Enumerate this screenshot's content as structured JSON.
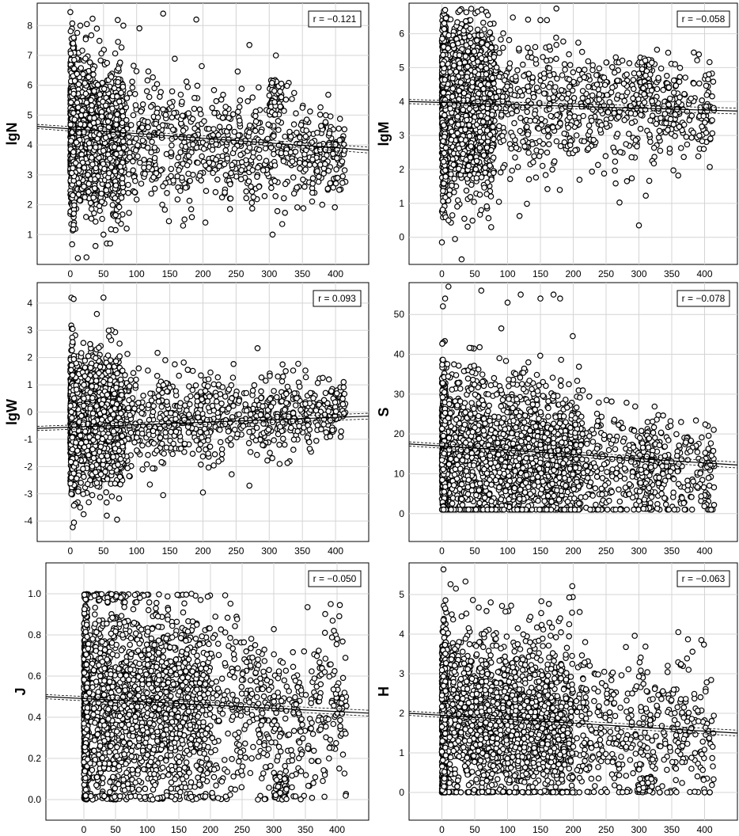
{
  "chart_data": [
    {
      "type": "scatter",
      "ylabel": "lgN",
      "annotation": "r = −0.121",
      "xlim": [
        -50,
        450
      ],
      "ylim": [
        0,
        8.75
      ],
      "xticks": [
        0,
        50,
        100,
        150,
        200,
        250,
        300,
        350,
        400
      ],
      "yticks": [
        1,
        2,
        3,
        4,
        5,
        6,
        7,
        8
      ],
      "fit": {
        "x": [
          -50,
          450
        ],
        "y": [
          4.62,
          3.83
        ]
      },
      "points_summary": {
        "mean": 4.3,
        "spread_near_zero": 1.25,
        "spread_far": 0.75,
        "dense_x_max": 80
      },
      "outliers": [
        [
          0,
          8.45
        ],
        [
          5,
          7.6
        ],
        [
          15,
          8.0
        ],
        [
          25,
          8.05
        ],
        [
          40,
          7.9
        ],
        [
          50,
          1.0
        ],
        [
          55,
          0.7
        ],
        [
          60,
          0.7
        ],
        [
          80,
          8.0
        ],
        [
          85,
          1.2
        ],
        [
          140,
          8.4
        ],
        [
          190,
          8.2
        ],
        [
          270,
          7.35
        ],
        [
          305,
          1.0
        ],
        [
          310,
          7.0
        ],
        [
          365,
          2.4
        ],
        [
          380,
          2.0
        ]
      ],
      "cluster": {
        "x": [
          300,
          320
        ],
        "y": [
          5.0,
          6.2
        ]
      }
    },
    {
      "type": "scatter",
      "ylabel": "lgM",
      "annotation": "r = −0.058",
      "xlim": [
        -50,
        450
      ],
      "ylim": [
        -0.8,
        6.9
      ],
      "xticks": [
        0,
        50,
        100,
        150,
        200,
        250,
        300,
        350,
        400
      ],
      "yticks": [
        0,
        1,
        2,
        3,
        4,
        5,
        6
      ],
      "fit": {
        "x": [
          -50,
          450
        ],
        "y": [
          4.0,
          3.72
        ]
      },
      "points_summary": {
        "mean": 3.9,
        "spread_near_zero": 1.3,
        "spread_far": 0.7,
        "dense_x_max": 80
      },
      "outliers": [
        [
          0,
          -0.15
        ],
        [
          5,
          6.7
        ],
        [
          10,
          0.5
        ],
        [
          20,
          -0.05
        ],
        [
          30,
          -0.65
        ],
        [
          60,
          0.8
        ],
        [
          75,
          0.3
        ],
        [
          150,
          6.4
        ],
        [
          160,
          6.4
        ],
        [
          300,
          0.35
        ],
        [
          355,
          5.1
        ]
      ],
      "cluster": {
        "x": [
          300,
          320
        ],
        "y": [
          4.2,
          5.3
        ]
      }
    },
    {
      "type": "scatter",
      "ylabel": "lgW",
      "annotation": "r = 0.093",
      "xlim": [
        -50,
        450
      ],
      "ylim": [
        -4.75,
        4.75
      ],
      "xticks": [
        0,
        50,
        100,
        150,
        200,
        250,
        300,
        350,
        400
      ],
      "yticks": [
        -4,
        -3,
        -2,
        -1,
        0,
        1,
        2,
        3,
        4
      ],
      "fit": {
        "x": [
          -50,
          450
        ],
        "y": [
          -0.6,
          -0.15
        ]
      },
      "points_summary": {
        "mean": -0.35,
        "spread_near_zero": 1.2,
        "spread_far": 0.55,
        "dense_x_max": 80
      },
      "outliers": [
        [
          5,
          4.15
        ],
        [
          20,
          -3.75
        ],
        [
          40,
          3.6
        ],
        [
          50,
          4.2
        ],
        [
          55,
          -3.8
        ],
        [
          140,
          -3.05
        ],
        [
          200,
          -2.95
        ],
        [
          270,
          -2.7
        ],
        [
          320,
          1.75
        ],
        [
          390,
          1.2
        ]
      ],
      "cluster": null
    },
    {
      "type": "scatter",
      "ylabel": "S",
      "annotation": "r = −0.078",
      "xlim": [
        -50,
        450
      ],
      "ylim": [
        -7,
        58
      ],
      "xticks": [
        0,
        50,
        100,
        150,
        200,
        250,
        300,
        350,
        400
      ],
      "yticks": [
        0,
        10,
        20,
        30,
        40,
        50
      ],
      "fit": {
        "x": [
          -50,
          450
        ],
        "y": [
          17.5,
          12.2
        ]
      },
      "points_summary": {
        "mean": 15,
        "spread_near_zero": 11,
        "spread_far": 7,
        "dense_x_max": 210,
        "min_value": 1
      },
      "outliers": [
        [
          5,
          54
        ],
        [
          10,
          57
        ],
        [
          60,
          56
        ],
        [
          100,
          53
        ],
        [
          120,
          55
        ],
        [
          150,
          54
        ],
        [
          170,
          55
        ],
        [
          180,
          54
        ],
        [
          410,
          1
        ]
      ],
      "cluster": {
        "x": [
          300,
          320
        ],
        "y": [
          1,
          20
        ]
      }
    },
    {
      "type": "scatter",
      "ylabel": "J",
      "annotation": "r = −0.050",
      "xlim": [
        -60,
        450
      ],
      "ylim": [
        -0.1,
        1.15
      ],
      "xticks": [
        0,
        50,
        100,
        150,
        200,
        250,
        300,
        350,
        400
      ],
      "yticks": [
        0.0,
        0.2,
        0.4,
        0.6,
        0.8,
        1.0
      ],
      "fit": {
        "x": [
          -60,
          450
        ],
        "y": [
          0.5,
          0.42
        ]
      },
      "points_summary": {
        "mean": 0.48,
        "spread_near_zero": 0.28,
        "spread_far": 0.2,
        "dense_x_max": 200,
        "min_value": 0,
        "max_value": 1
      },
      "outliers": [
        [
          170,
          1.0
        ],
        [
          390,
          0.95
        ],
        [
          395,
          0.82
        ],
        [
          320,
          0.05
        ],
        [
          275,
          0.0
        ]
      ],
      "cluster": {
        "x": [
          300,
          320
        ],
        "y": [
          0.0,
          0.13
        ]
      }
    },
    {
      "type": "scatter",
      "ylabel": "H",
      "annotation": "r = −0.063",
      "xlim": [
        -50,
        450
      ],
      "ylim": [
        -0.7,
        5.8
      ],
      "xticks": [
        0,
        50,
        100,
        150,
        200,
        250,
        300,
        350,
        400
      ],
      "yticks": [
        0,
        1,
        2,
        3,
        4,
        5
      ],
      "fit": {
        "x": [
          -50,
          450
        ],
        "y": [
          2.0,
          1.5
        ]
      },
      "points_summary": {
        "mean": 1.9,
        "spread_near_zero": 1.1,
        "spread_far": 0.95,
        "dense_x_max": 200,
        "min_value": 0
      },
      "outliers": [
        [
          5,
          4.65
        ],
        [
          15,
          4.5
        ],
        [
          30,
          4.45
        ],
        [
          360,
          4.05
        ],
        [
          395,
          3.85
        ],
        [
          380,
          0.6
        ]
      ],
      "cluster": {
        "x": [
          300,
          320
        ],
        "y": [
          0.0,
          0.4
        ]
      }
    }
  ]
}
